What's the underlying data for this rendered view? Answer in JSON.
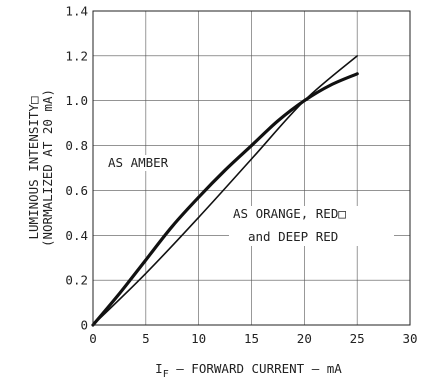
{
  "chart_data": {
    "type": "line",
    "ylabel_line1": "LUMINOUS INTENSITY□",
    "ylabel_line2": "(NORMALIZED AT 20 mA)",
    "xlabel_main": "I",
    "xlabel_sub": "F",
    "xlabel_rest": " – FORWARD CURRENT – mA",
    "xlim": [
      0,
      30
    ],
    "ylim": [
      0,
      1.4
    ],
    "x_ticks": [
      "0",
      "5",
      "10",
      "15",
      "20",
      "25",
      "30"
    ],
    "y_ticks": [
      "0",
      "0.2",
      "0.4",
      "0.6",
      "0.8",
      "1.0",
      "1.2",
      "1.4"
    ],
    "grid": true,
    "series": [
      {
        "name": "AS AMBER",
        "x": [
          0,
          2.5,
          5,
          7.5,
          10,
          12.5,
          15,
          17.5,
          20,
          22.5,
          25
        ],
        "y": [
          0,
          0.14,
          0.29,
          0.44,
          0.57,
          0.69,
          0.8,
          0.91,
          1.0,
          1.07,
          1.12
        ],
        "stroke": "heavy"
      },
      {
        "name_line1": "AS ORANGE, RED□",
        "name_line2": "and DEEP RED",
        "x": [
          0,
          5,
          10,
          15,
          20,
          25
        ],
        "y": [
          0,
          0.23,
          0.48,
          0.74,
          1.0,
          1.2
        ],
        "stroke": "thin"
      }
    ]
  }
}
